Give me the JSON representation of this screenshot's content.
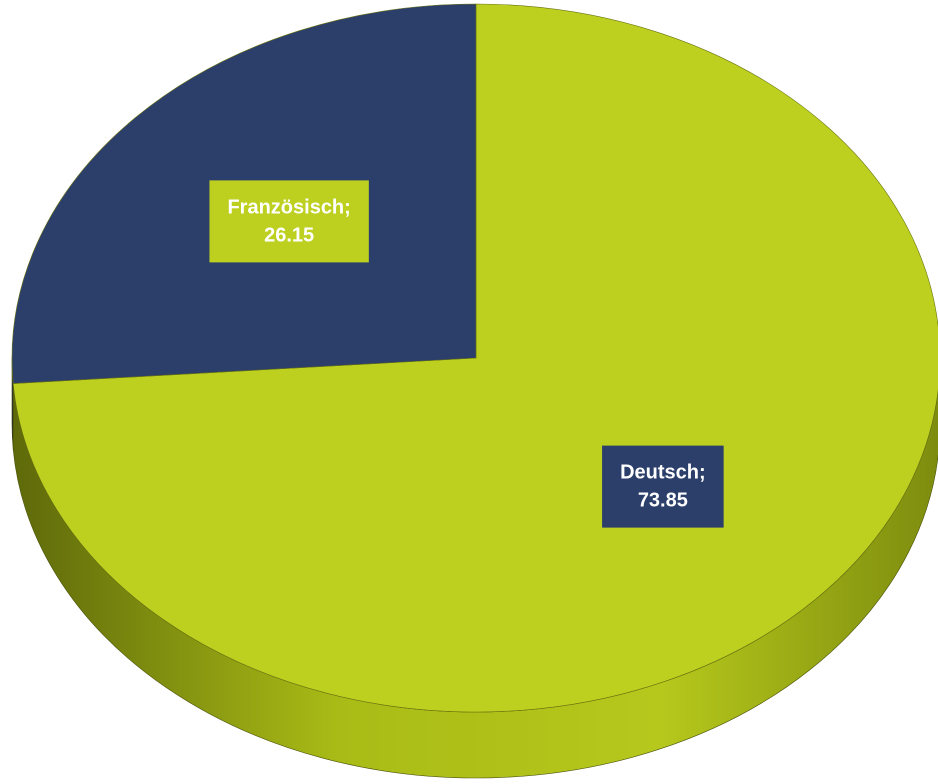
{
  "chart_data": {
    "type": "pie",
    "categories": [
      "Deutsch",
      "Französisch"
    ],
    "values": [
      73.85,
      26.15
    ],
    "colors": [
      "#bdd020",
      "#2c3f6b"
    ],
    "label_separator": ";"
  }
}
